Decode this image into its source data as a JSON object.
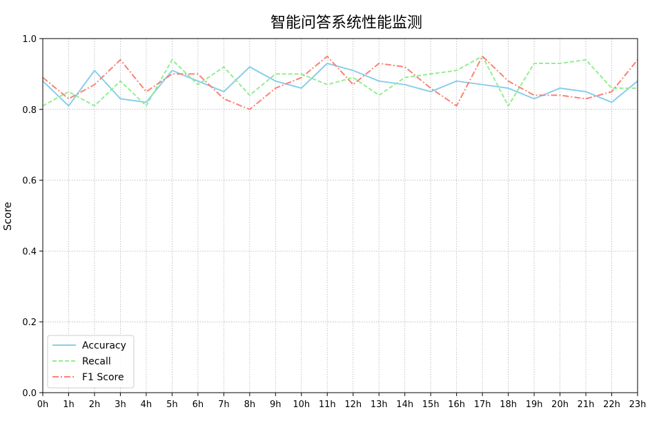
{
  "chart_data": {
    "type": "line",
    "title": "智能问答系统性能监测",
    "xlabel": "",
    "ylabel": "Score",
    "ylim": [
      0.0,
      1.0
    ],
    "yticks": [
      "0.0",
      "0.2",
      "0.4",
      "0.6",
      "0.8",
      "1.0"
    ],
    "categories": [
      "0h",
      "1h",
      "2h",
      "3h",
      "4h",
      "5h",
      "6h",
      "7h",
      "8h",
      "9h",
      "10h",
      "11h",
      "12h",
      "13h",
      "14h",
      "15h",
      "16h",
      "17h",
      "18h",
      "19h",
      "20h",
      "21h",
      "22h",
      "23h"
    ],
    "grid": true,
    "legend_position": "lower-left",
    "series": [
      {
        "name": "Accuracy",
        "color": "#87CEEB",
        "linestyle": "solid",
        "values": [
          0.88,
          0.81,
          0.91,
          0.83,
          0.82,
          0.91,
          0.88,
          0.85,
          0.92,
          0.88,
          0.86,
          0.93,
          0.91,
          0.88,
          0.87,
          0.85,
          0.88,
          0.87,
          0.86,
          0.83,
          0.86,
          0.85,
          0.82,
          0.88
        ]
      },
      {
        "name": "Recall",
        "color": "#90EE90",
        "linestyle": "dashed",
        "values": [
          0.81,
          0.85,
          0.81,
          0.88,
          0.81,
          0.94,
          0.87,
          0.92,
          0.84,
          0.9,
          0.9,
          0.87,
          0.89,
          0.84,
          0.89,
          0.9,
          0.91,
          0.95,
          0.81,
          0.93,
          0.93,
          0.94,
          0.86,
          0.86
        ]
      },
      {
        "name": "F1 Score",
        "color": "#FA8072",
        "linestyle": "dashdot",
        "values": [
          0.89,
          0.83,
          0.87,
          0.94,
          0.85,
          0.9,
          0.9,
          0.83,
          0.8,
          0.86,
          0.89,
          0.95,
          0.87,
          0.93,
          0.92,
          0.86,
          0.81,
          0.95,
          0.88,
          0.84,
          0.84,
          0.83,
          0.85,
          0.94
        ]
      }
    ]
  }
}
